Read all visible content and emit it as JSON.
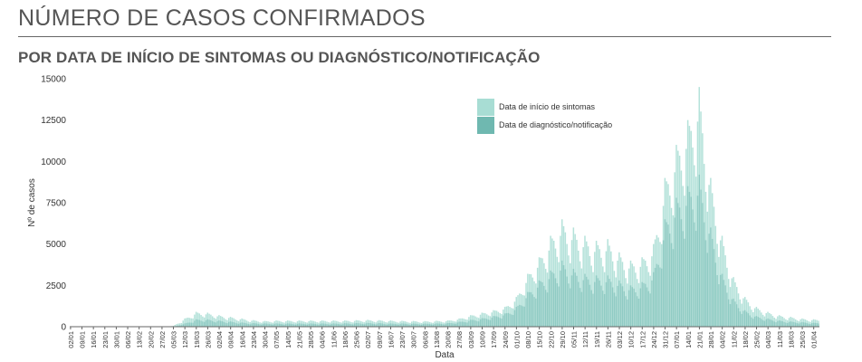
{
  "page": {
    "title": "NÚMERO DE CASOS CONFIRMADOS",
    "subtitle": "POR DATA DE INÍCIO DE SINTOMAS OU DIAGNÓSTICO/NOTIFICAÇÃO"
  },
  "colors": {
    "sintomas": "#a8ddd4",
    "diagnostico": "#6fb8b0",
    "axis": "#666666",
    "text": "#333333"
  },
  "chart_data": {
    "type": "bar",
    "title": "",
    "xlabel": "Data",
    "ylabel": "Nº de casos",
    "ylim": [
      0,
      15000
    ],
    "yticks": [
      0,
      2500,
      5000,
      7500,
      10000,
      12500,
      15000
    ],
    "ytick_labels": [
      "0",
      "2500",
      "5000",
      "7500",
      "10000",
      "12500",
      "15000"
    ],
    "x_start": "2020-01-02",
    "x_end": "2021-04-04",
    "xtick_labels": [
      "02/01",
      "09/01",
      "16/01",
      "23/01",
      "30/01",
      "06/02",
      "13/02",
      "20/02",
      "27/02",
      "05/03",
      "12/03",
      "19/03",
      "26/03",
      "02/04",
      "09/04",
      "16/04",
      "23/04",
      "30/04",
      "07/05",
      "14/05",
      "21/05",
      "28/05",
      "04/06",
      "11/06",
      "18/06",
      "25/06",
      "02/07",
      "09/07",
      "16/07",
      "23/07",
      "30/07",
      "06/08",
      "13/08",
      "20/08",
      "27/08",
      "03/09",
      "10/09",
      "17/09",
      "24/09",
      "01/10",
      "08/10",
      "15/10",
      "22/10",
      "29/10",
      "05/11",
      "12/11",
      "19/11",
      "26/11",
      "03/12",
      "10/12",
      "17/12",
      "24/12",
      "31/12",
      "07/01",
      "14/01",
      "21/01",
      "28/01",
      "04/02",
      "11/02",
      "18/02",
      "25/02",
      "04/03",
      "11/03",
      "18/03",
      "25/03",
      "01/04"
    ],
    "legend_position": "top-right",
    "grid": false,
    "series": [
      {
        "name": "Data de início de sintomas",
        "weekly_peaks": [
          0,
          0,
          0,
          0,
          0,
          0,
          0,
          0,
          0,
          50,
          500,
          900,
          850,
          700,
          600,
          500,
          400,
          350,
          380,
          380,
          380,
          380,
          380,
          380,
          380,
          400,
          420,
          400,
          380,
          360,
          350,
          340,
          360,
          380,
          500,
          700,
          850,
          1000,
          1200,
          1800,
          3200,
          4200,
          5500,
          6500,
          6000,
          5500,
          5200,
          5300,
          4500,
          4000,
          4200,
          5000,
          9000,
          11000,
          12500,
          14500,
          9000,
          5500,
          3000,
          1800,
          1200,
          900,
          700,
          600,
          500,
          450
        ],
        "weekly_averages": [
          0,
          0,
          0,
          0,
          0,
          0,
          0,
          0,
          0,
          20,
          250,
          650,
          600,
          500,
          400,
          320,
          280,
          250,
          260,
          270,
          270,
          270,
          270,
          270,
          280,
          290,
          300,
          290,
          270,
          260,
          250,
          240,
          260,
          280,
          380,
          550,
          650,
          800,
          1000,
          1500,
          2600,
          3300,
          3600,
          4200,
          3800,
          3500,
          3300,
          3400,
          3000,
          2600,
          2900,
          3600,
          6000,
          8000,
          9500,
          10500,
          7000,
          3800,
          2200,
          1300,
          800,
          600,
          450,
          380,
          320,
          280
        ]
      },
      {
        "name": "Data de diagnóstico/notificação",
        "weekly_peaks": [
          0,
          0,
          0,
          0,
          0,
          0,
          0,
          0,
          0,
          0,
          200,
          450,
          450,
          380,
          320,
          260,
          220,
          200,
          200,
          200,
          200,
          200,
          200,
          200,
          210,
          220,
          230,
          220,
          200,
          200,
          190,
          190,
          200,
          220,
          300,
          420,
          520,
          650,
          800,
          1200,
          2100,
          2800,
          3400,
          4000,
          3500,
          3200,
          3100,
          3100,
          2800,
          2500,
          2700,
          3300,
          6500,
          7800,
          8500,
          9200,
          6000,
          3200,
          1700,
          1000,
          650,
          500,
          380,
          320,
          280,
          240
        ],
        "weekly_averages": [
          0,
          0,
          0,
          0,
          0,
          0,
          0,
          0,
          0,
          0,
          120,
          300,
          300,
          250,
          210,
          170,
          150,
          140,
          140,
          140,
          140,
          140,
          140,
          140,
          150,
          150,
          160,
          150,
          140,
          140,
          130,
          130,
          140,
          150,
          210,
          300,
          380,
          480,
          600,
          900,
          1600,
          2100,
          2300,
          2700,
          2400,
          2200,
          2100,
          2100,
          1900,
          1700,
          1900,
          2300,
          4200,
          5200,
          6000,
          6500,
          4300,
          2200,
          1200,
          700,
          450,
          350,
          270,
          230,
          200,
          170
        ]
      }
    ]
  }
}
